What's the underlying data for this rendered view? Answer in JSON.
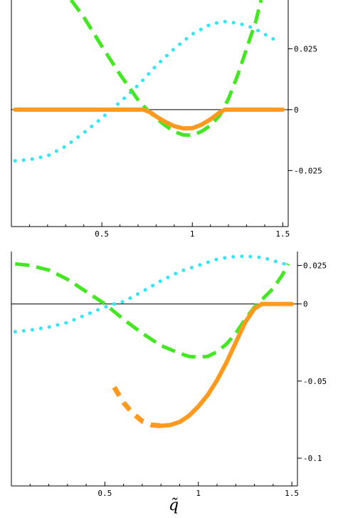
{
  "chart_data": [
    {
      "type": "line",
      "xlim": [
        0,
        1.53
      ],
      "ylim": [
        -0.048,
        0.045
      ],
      "x_ticks": [
        {
          "value": 0.5,
          "label": "0.5"
        },
        {
          "value": 1,
          "label": "1"
        },
        {
          "value": 1.5,
          "label": "1.5"
        }
      ],
      "y_ticks": [
        {
          "value": 0.025,
          "label": "0.025"
        },
        {
          "value": 0,
          "label": "0"
        },
        {
          "value": -0.025,
          "label": "-0.025"
        }
      ],
      "zero_line": true,
      "grid": false,
      "series": [
        {
          "style": "dotted",
          "color": "#33e6f2",
          "x": [
            0.02,
            0.1,
            0.2,
            0.3,
            0.4,
            0.5,
            0.55,
            0.6,
            0.7,
            0.8,
            0.9,
            1.0,
            1.1,
            1.17,
            1.25,
            1.3,
            1.35,
            1.4,
            1.46
          ],
          "y": [
            -0.021,
            -0.0205,
            -0.019,
            -0.015,
            -0.0095,
            -0.0035,
            0.0,
            0.003,
            0.01,
            0.018,
            0.025,
            0.031,
            0.035,
            0.0362,
            0.0355,
            0.0345,
            0.033,
            0.031,
            0.0285
          ]
        },
        {
          "style": "dashed",
          "color": "#44e822",
          "x": [
            0.33,
            0.4,
            0.5,
            0.6,
            0.7,
            0.75,
            0.8,
            0.85,
            0.9,
            0.95,
            1.0,
            1.05,
            1.1,
            1.15,
            1.17,
            1.2,
            1.25,
            1.3,
            1.35,
            1.38
          ],
          "y": [
            0.045,
            0.038,
            0.026,
            0.0145,
            0.004,
            0.0,
            -0.0035,
            -0.0065,
            -0.009,
            -0.0104,
            -0.0105,
            -0.009,
            -0.0065,
            -0.0025,
            0.0,
            0.0045,
            0.014,
            0.025,
            0.036,
            0.045
          ]
        },
        {
          "style": "solid",
          "color": "#ff9a1f",
          "x": [
            0.02,
            0.2,
            0.4,
            0.6,
            0.7,
            0.73,
            0.77,
            0.8,
            0.85,
            0.9,
            0.95,
            1.0,
            1.05,
            1.1,
            1.15,
            1.18,
            1.3,
            1.5
          ],
          "y": [
            0,
            0,
            0,
            0,
            0,
            0,
            -0.0012,
            -0.0028,
            -0.005,
            -0.0068,
            -0.0077,
            -0.0076,
            -0.0062,
            -0.004,
            -0.0012,
            0,
            0,
            0
          ]
        }
      ]
    },
    {
      "type": "line",
      "xlim": [
        0,
        1.53
      ],
      "ylim": [
        -0.118,
        0.034
      ],
      "x_ticks": [
        {
          "value": 0.5,
          "label": "0.5"
        },
        {
          "value": 1,
          "label": "1"
        },
        {
          "value": 1.5,
          "label": "1.5"
        }
      ],
      "y_ticks": [
        {
          "value": 0.025,
          "label": "0.025"
        },
        {
          "value": 0,
          "label": "0"
        },
        {
          "value": -0.05,
          "label": "-0.05"
        },
        {
          "value": -0.1,
          "label": "-0.1"
        }
      ],
      "zero_line": true,
      "grid": false,
      "xlabel": "q̃",
      "series": [
        {
          "style": "dotted",
          "color": "#33e6f2",
          "x": [
            0.02,
            0.1,
            0.2,
            0.3,
            0.4,
            0.5,
            0.55,
            0.6,
            0.7,
            0.8,
            0.9,
            1.0,
            1.1,
            1.17,
            1.25,
            1.3,
            1.35,
            1.4,
            1.46
          ],
          "y": [
            -0.018,
            -0.017,
            -0.015,
            -0.012,
            -0.007,
            -0.002,
            0.0,
            0.0015,
            0.008,
            0.015,
            0.021,
            0.025,
            0.029,
            0.0305,
            0.031,
            0.0305,
            0.03,
            0.028,
            0.026
          ]
        },
        {
          "style": "dashed",
          "color": "#44e822",
          "x": [
            0.02,
            0.1,
            0.2,
            0.3,
            0.4,
            0.45,
            0.5,
            0.55,
            0.6,
            0.7,
            0.8,
            0.9,
            0.95,
            1.0,
            1.05,
            1.1,
            1.15,
            1.2,
            1.25,
            1.3,
            1.35,
            1.4,
            1.45,
            1.48
          ],
          "y": [
            0.026,
            0.025,
            0.022,
            0.016,
            0.008,
            0.004,
            0.0,
            -0.005,
            -0.01,
            -0.019,
            -0.027,
            -0.032,
            -0.034,
            -0.0345,
            -0.034,
            -0.031,
            -0.026,
            -0.019,
            -0.01,
            -0.002,
            0.004,
            0.01,
            0.019,
            0.026
          ]
        },
        {
          "style": "dashed-thick",
          "color": "#ff9a1f",
          "x": [
            0.55,
            0.6,
            0.65,
            0.7,
            0.75,
            0.8
          ],
          "y": [
            -0.054,
            -0.064,
            -0.071,
            -0.076,
            -0.0785,
            -0.079
          ]
        },
        {
          "style": "solid",
          "color": "#ff9a1f",
          "x": [
            0.8,
            0.85,
            0.9,
            0.95,
            1.0,
            1.05,
            1.1,
            1.15,
            1.2,
            1.25,
            1.3,
            1.34,
            1.4,
            1.5
          ],
          "y": [
            -0.079,
            -0.0785,
            -0.0765,
            -0.0725,
            -0.0665,
            -0.059,
            -0.0495,
            -0.038,
            -0.025,
            -0.012,
            -0.003,
            0.0,
            0.0,
            0.0
          ]
        }
      ]
    }
  ]
}
